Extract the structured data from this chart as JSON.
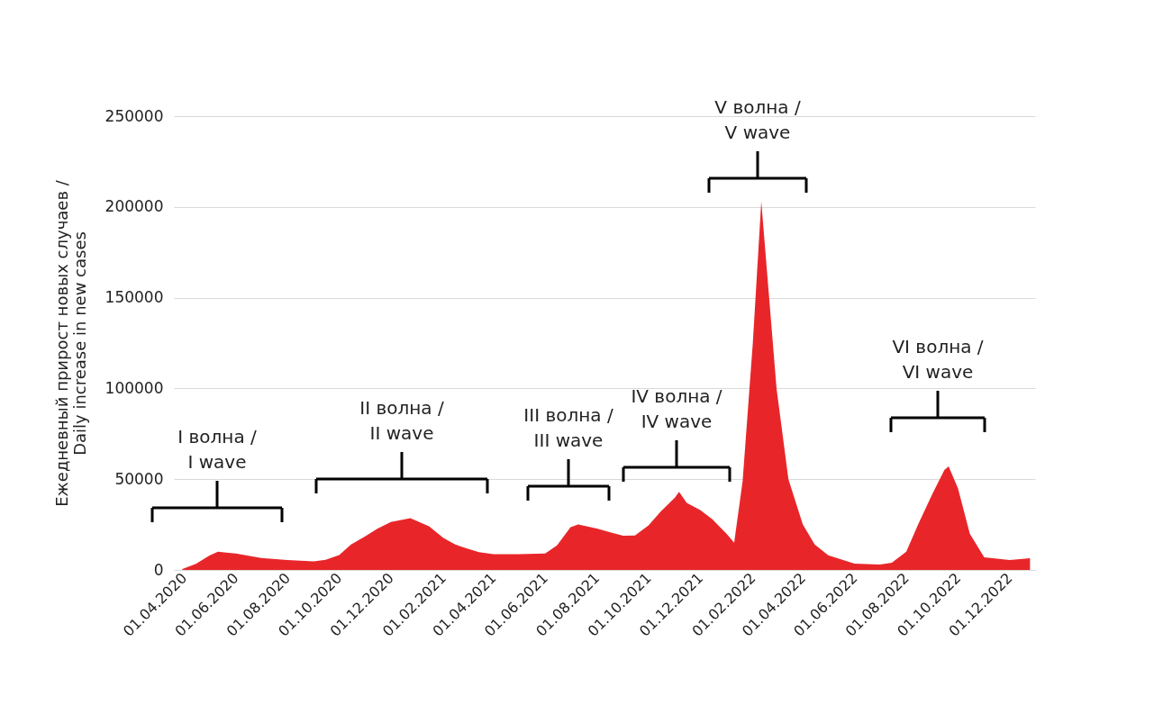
{
  "chart_data": {
    "type": "area",
    "ylabel": "Ежедневный прирост новых случаев /\nDaily increase in new cases",
    "x": [
      "2020-03-30",
      "2020-04-15",
      "2020-05-01",
      "2020-05-11",
      "2020-06-01",
      "2020-07-01",
      "2020-08-01",
      "2020-09-01",
      "2020-09-15",
      "2020-10-01",
      "2020-10-15",
      "2020-11-01",
      "2020-11-15",
      "2020-12-01",
      "2020-12-24",
      "2021-01-15",
      "2021-02-01",
      "2021-02-15",
      "2021-03-01",
      "2021-03-15",
      "2021-04-01",
      "2021-05-01",
      "2021-06-01",
      "2021-06-15",
      "2021-07-01",
      "2021-07-10",
      "2021-08-01",
      "2021-08-15",
      "2021-09-01",
      "2021-09-15",
      "2021-10-01",
      "2021-10-15",
      "2021-11-01",
      "2021-11-06",
      "2021-11-15",
      "2021-12-01",
      "2021-12-15",
      "2022-01-01",
      "2022-01-10",
      "2022-01-20",
      "2022-02-01",
      "2022-02-11",
      "2022-02-15",
      "2022-03-01",
      "2022-03-15",
      "2022-04-01",
      "2022-04-15",
      "2022-05-01",
      "2022-06-01",
      "2022-07-01",
      "2022-07-15",
      "2022-08-01",
      "2022-08-15",
      "2022-09-01",
      "2022-09-15",
      "2022-09-20",
      "2022-10-01",
      "2022-10-15",
      "2022-11-01",
      "2022-12-01",
      "2022-12-25"
    ],
    "series": [
      {
        "color": "#e8262a",
        "values": [
          500,
          3400,
          7900,
          10000,
          9000,
          6600,
          5400,
          4700,
          5600,
          8200,
          14000,
          18600,
          22700,
          26400,
          28500,
          24000,
          17600,
          14000,
          11800,
          9800,
          8700,
          8700,
          9000,
          13500,
          23500,
          25000,
          22800,
          21000,
          18800,
          19000,
          24500,
          32000,
          39800,
          43000,
          37000,
          33000,
          28000,
          20000,
          15000,
          49000,
          125000,
          203000,
          180000,
          100000,
          50000,
          25000,
          14000,
          8000,
          3500,
          3000,
          4000,
          10000,
          25000,
          42000,
          55000,
          57000,
          45000,
          20000,
          7000,
          5500,
          6500
        ]
      }
    ],
    "xlim": [
      "2020-03-20",
      "2022-12-31"
    ],
    "xticks": [
      {
        "value": "2020-04-01",
        "label": "01.04.2020"
      },
      {
        "value": "2020-06-01",
        "label": "01.06.2020"
      },
      {
        "value": "2020-08-01",
        "label": "01.08.2020"
      },
      {
        "value": "2020-10-01",
        "label": "01.10.2020"
      },
      {
        "value": "2020-12-01",
        "label": "01.12.2020"
      },
      {
        "value": "2021-02-01",
        "label": "01.02.2021"
      },
      {
        "value": "2021-04-01",
        "label": "01.04.2021"
      },
      {
        "value": "2021-06-01",
        "label": "01.06.2021"
      },
      {
        "value": "2021-08-01",
        "label": "01.08.2021"
      },
      {
        "value": "2021-10-01",
        "label": "01.10.2021"
      },
      {
        "value": "2021-12-01",
        "label": "01.12.2021"
      },
      {
        "value": "2022-02-01",
        "label": "01.02.2022"
      },
      {
        "value": "2022-04-01",
        "label": "01.04.2022"
      },
      {
        "value": "2022-06-01",
        "label": "01.06.2022"
      },
      {
        "value": "2022-08-01",
        "label": "01.08.2022"
      },
      {
        "value": "2022-10-01",
        "label": "01.10.2022"
      },
      {
        "value": "2022-12-01",
        "label": "01.12.2022"
      }
    ],
    "ylim": [
      0,
      250000
    ],
    "yticks": [
      0,
      50000,
      100000,
      150000,
      200000,
      250000
    ],
    "grid": "y",
    "annotations": [
      "I волна /\nI wave",
      "II волна /\nII wave",
      "III волна /\nIII wave",
      "IV волна /\nIV wave",
      "V волна /\nV wave",
      "VI волна /\nVI wave"
    ]
  }
}
